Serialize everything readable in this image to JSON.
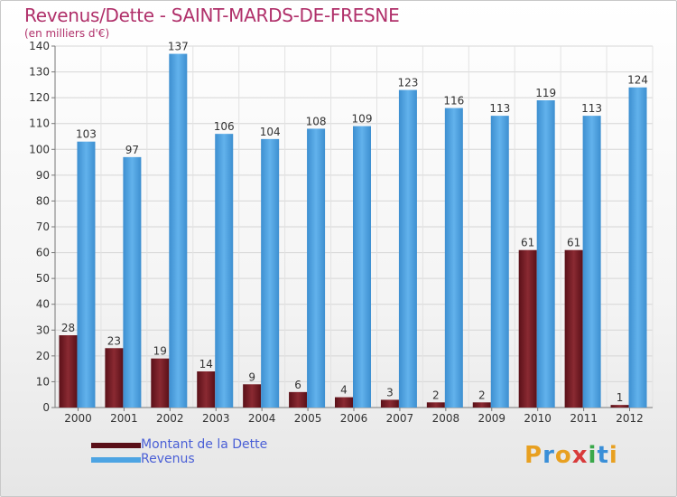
{
  "title": "Revenus/Dette - SAINT-MARDS-DE-FRESNE",
  "subtitle": "(en milliers d'€)",
  "legend": {
    "debt_label": "Montant de la Dette",
    "revenue_label": "Revenus"
  },
  "logo_text": "Proxiti",
  "colors": {
    "debt": "#7a1f28",
    "revenue": "#4da4e3",
    "title": "#b0306a",
    "legend_text": "#4a5fd6"
  },
  "chart_data": {
    "type": "bar",
    "categories": [
      "2000",
      "2001",
      "2002",
      "2003",
      "2004",
      "2005",
      "2006",
      "2007",
      "2008",
      "2009",
      "2010",
      "2011",
      "2012"
    ],
    "series": [
      {
        "name": "Montant de la Dette",
        "values": [
          28,
          23,
          19,
          14,
          9,
          6,
          4,
          3,
          2,
          2,
          61,
          61,
          1
        ]
      },
      {
        "name": "Revenus",
        "values": [
          103,
          97,
          137,
          106,
          104,
          108,
          109,
          123,
          116,
          113,
          119,
          113,
          124
        ]
      }
    ],
    "ylim": [
      0,
      140
    ],
    "yticks": [
      0,
      10,
      20,
      30,
      40,
      50,
      60,
      70,
      80,
      90,
      100,
      110,
      120,
      130,
      140
    ],
    "grid": true,
    "legend_position": "bottom-left"
  }
}
